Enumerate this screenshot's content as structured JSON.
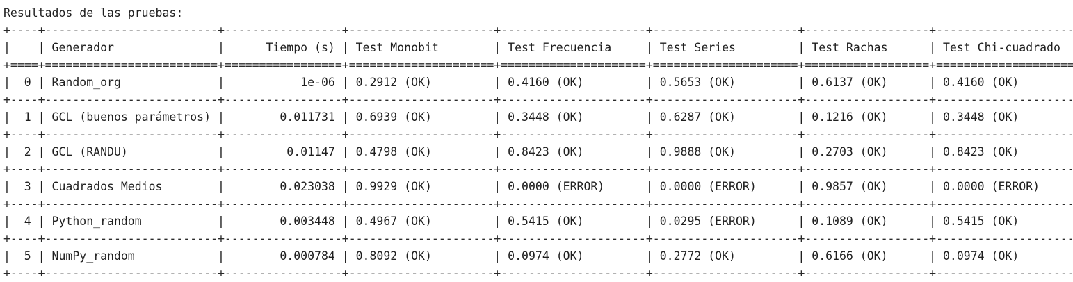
{
  "output": {
    "title": "Resultados de las pruebas:",
    "lines": [
      "Resultados de las pruebas:",
      "+----+-------------------------+-----------------+---------------------+---------------------+---------------------+------------------+------------------------+",
      "|    | Generador               |      Tiempo (s) | Test Monobit        | Test Frecuencia     | Test Series         | Test Rachas      | Test Chi-cuadrado      |",
      "+====+=========================+=================+=====================+=====================+=====================+==================+========================+",
      "|  0 | Random_org              |           1e-06 | 0.2912 (OK)         | 0.4160 (OK)         | 0.5653 (OK)         | 0.6137 (OK)      | 0.4160 (OK)            |",
      "+----+-------------------------+-----------------+---------------------+---------------------+---------------------+------------------+------------------------+",
      "|  1 | GCL (buenos parámetros) |        0.011731 | 0.6939 (OK)         | 0.3448 (OK)         | 0.6287 (OK)         | 0.1216 (OK)      | 0.3448 (OK)            |",
      "+----+-------------------------+-----------------+---------------------+---------------------+---------------------+------------------+------------------------+",
      "|  2 | GCL (RANDU)             |         0.01147 | 0.4798 (OK)         | 0.8423 (OK)         | 0.9888 (OK)         | 0.2703 (OK)      | 0.8423 (OK)            |",
      "+----+-------------------------+-----------------+---------------------+---------------------+---------------------+------------------+------------------------+",
      "|  3 | Cuadrados Medios        |        0.023038 | 0.9929 (OK)         | 0.0000 (ERROR)      | 0.0000 (ERROR)      | 0.9857 (OK)      | 0.0000 (ERROR)         |",
      "+----+-------------------------+-----------------+---------------------+---------------------+---------------------+------------------+------------------------+",
      "|  4 | Python_random           |        0.003448 | 0.4967 (OK)         | 0.5415 (OK)         | 0.0295 (ERROR)      | 0.1089 (OK)      | 0.5415 (OK)            |",
      "+----+-------------------------+-----------------+---------------------+---------------------+---------------------+------------------+------------------------+",
      "|  5 | NumPy_random            |        0.000784 | 0.8092 (OK)         | 0.0974 (OK)         | 0.2772 (OK)         | 0.6166 (OK)      | 0.0974 (OK)            |",
      "+----+-------------------------+-----------------+---------------------+---------------------+---------------------+------------------+------------------------+"
    ]
  }
}
